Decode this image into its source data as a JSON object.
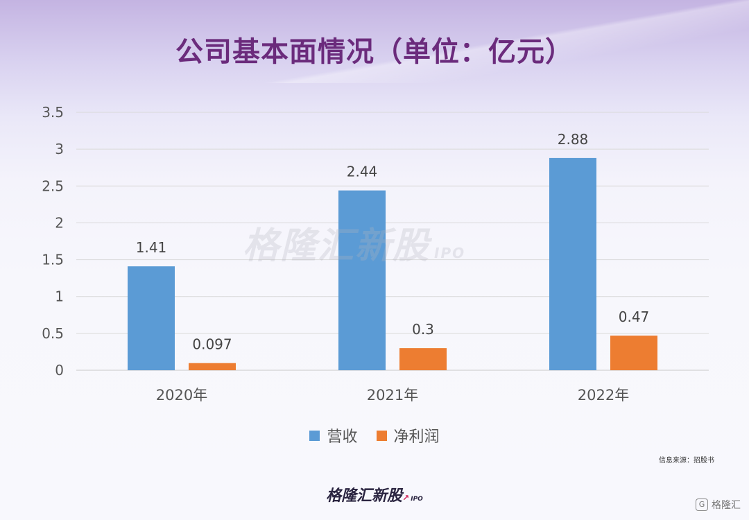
{
  "title": "公司基本面情况（单位：亿元）",
  "chart_data": {
    "type": "bar",
    "categories": [
      "2020年",
      "2021年",
      "2022年"
    ],
    "series": [
      {
        "name": "营收",
        "values": [
          1.41,
          2.44,
          2.88
        ],
        "labels": [
          "1.41",
          "2.44",
          "2.88"
        ],
        "color": "#5b9bd5"
      },
      {
        "name": "净利润",
        "values": [
          0.097,
          0.3,
          0.47
        ],
        "labels": [
          "0.097",
          "0.3",
          "0.47"
        ],
        "color": "#ed7d31"
      }
    ],
    "yticks": [
      "0",
      "0.5",
      "1",
      "1.5",
      "2",
      "2.5",
      "3",
      "3.5"
    ],
    "ylim": [
      0,
      3.5
    ],
    "grid": true,
    "legend_position": "bottom"
  },
  "watermark": {
    "text": "格隆汇新股",
    "suffix": "IPO"
  },
  "source_note": "信息来源：招股书",
  "footer": {
    "brand": "格隆汇新股",
    "suffix": "IPO"
  },
  "corner_logo": {
    "glyph": "G",
    "text": "格隆汇"
  }
}
